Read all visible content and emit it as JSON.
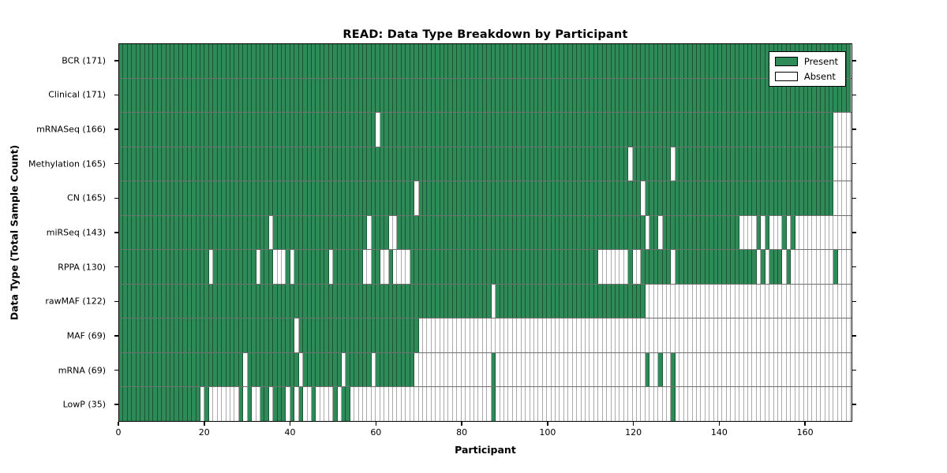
{
  "figure": {
    "background": "#ffffff"
  },
  "chart_data": {
    "type": "heatmap",
    "title": "READ: Data Type Breakdown by Participant",
    "xlabel": "Participant",
    "ylabel": "Data Type (Total Sample Count)",
    "n_participants": 171,
    "x_ticks": [
      0,
      20,
      40,
      60,
      80,
      100,
      120,
      140,
      160
    ],
    "x_range": [
      0,
      171
    ],
    "grid": "off",
    "legend_position": "upper-right",
    "colors": {
      "present": "#2e8b57",
      "absent": "#ffffff",
      "present_gridline": "#1e5c3a",
      "absent_gridline": "#ababab",
      "row_separator": "#6f6f6f",
      "plot_border": "#000000"
    },
    "legend": {
      "items": [
        {
          "label": "Present",
          "color": "#2e8b57"
        },
        {
          "label": "Absent",
          "color": "#ffffff"
        }
      ]
    },
    "rows": [
      {
        "label": "BCR (171)",
        "data_type": "BCR",
        "present_count": 171,
        "absent_ranges": []
      },
      {
        "label": "Clinical (171)",
        "data_type": "Clinical",
        "present_count": 171,
        "absent_ranges": []
      },
      {
        "label": "mRNASeq (166)",
        "data_type": "mRNASeq",
        "present_count": 166,
        "absent_ranges": [
          [
            60,
            60
          ],
          [
            167,
            170
          ]
        ]
      },
      {
        "label": "Methylation (165)",
        "data_type": "Methylation",
        "present_count": 165,
        "absent_ranges": [
          [
            119,
            119
          ],
          [
            129,
            129
          ],
          [
            167,
            170
          ]
        ]
      },
      {
        "label": "CN (165)",
        "data_type": "CN",
        "present_count": 165,
        "absent_ranges": [
          [
            69,
            69
          ],
          [
            122,
            122
          ],
          [
            167,
            170
          ]
        ]
      },
      {
        "label": "miRSeq (143)",
        "data_type": "miRSeq",
        "present_count": 143,
        "absent_ranges": [
          [
            35,
            35
          ],
          [
            58,
            58
          ],
          [
            63,
            64
          ],
          [
            123,
            123
          ],
          [
            126,
            126
          ],
          [
            145,
            148
          ],
          [
            150,
            150
          ],
          [
            152,
            154
          ],
          [
            156,
            156
          ],
          [
            158,
            170
          ]
        ]
      },
      {
        "label": "RPPA (130)",
        "data_type": "RPPA",
        "present_count": 130,
        "absent_ranges": [
          [
            21,
            21
          ],
          [
            32,
            32
          ],
          [
            36,
            38
          ],
          [
            40,
            40
          ],
          [
            49,
            49
          ],
          [
            57,
            58
          ],
          [
            61,
            62
          ],
          [
            64,
            67
          ],
          [
            112,
            118
          ],
          [
            120,
            121
          ],
          [
            129,
            129
          ],
          [
            149,
            149
          ],
          [
            151,
            151
          ],
          [
            155,
            155
          ],
          [
            157,
            166
          ],
          [
            168,
            170
          ]
        ]
      },
      {
        "label": "rawMAF (122)",
        "data_type": "rawMAF",
        "present_count": 122,
        "absent_ranges": [
          [
            87,
            87
          ],
          [
            123,
            170
          ]
        ]
      },
      {
        "label": "MAF (69)",
        "data_type": "MAF",
        "present_count": 69,
        "absent_ranges": [
          [
            41,
            41
          ],
          [
            70,
            170
          ]
        ]
      },
      {
        "label": "mRNA (69)",
        "data_type": "mRNA",
        "present_count": 69,
        "absent_ranges": [
          [
            29,
            29
          ],
          [
            42,
            42
          ],
          [
            52,
            52
          ],
          [
            59,
            59
          ],
          [
            69,
            86
          ],
          [
            88,
            122
          ],
          [
            124,
            125
          ],
          [
            127,
            128
          ],
          [
            130,
            170
          ]
        ]
      },
      {
        "label": "LowP (35)",
        "data_type": "LowP",
        "present_count": 35,
        "absent_ranges": [
          [
            19,
            19
          ],
          [
            21,
            27
          ],
          [
            29,
            29
          ],
          [
            31,
            32
          ],
          [
            35,
            35
          ],
          [
            39,
            39
          ],
          [
            41,
            41
          ],
          [
            43,
            44
          ],
          [
            46,
            49
          ],
          [
            51,
            51
          ],
          [
            54,
            86
          ],
          [
            88,
            128
          ],
          [
            130,
            170
          ]
        ]
      }
    ]
  }
}
